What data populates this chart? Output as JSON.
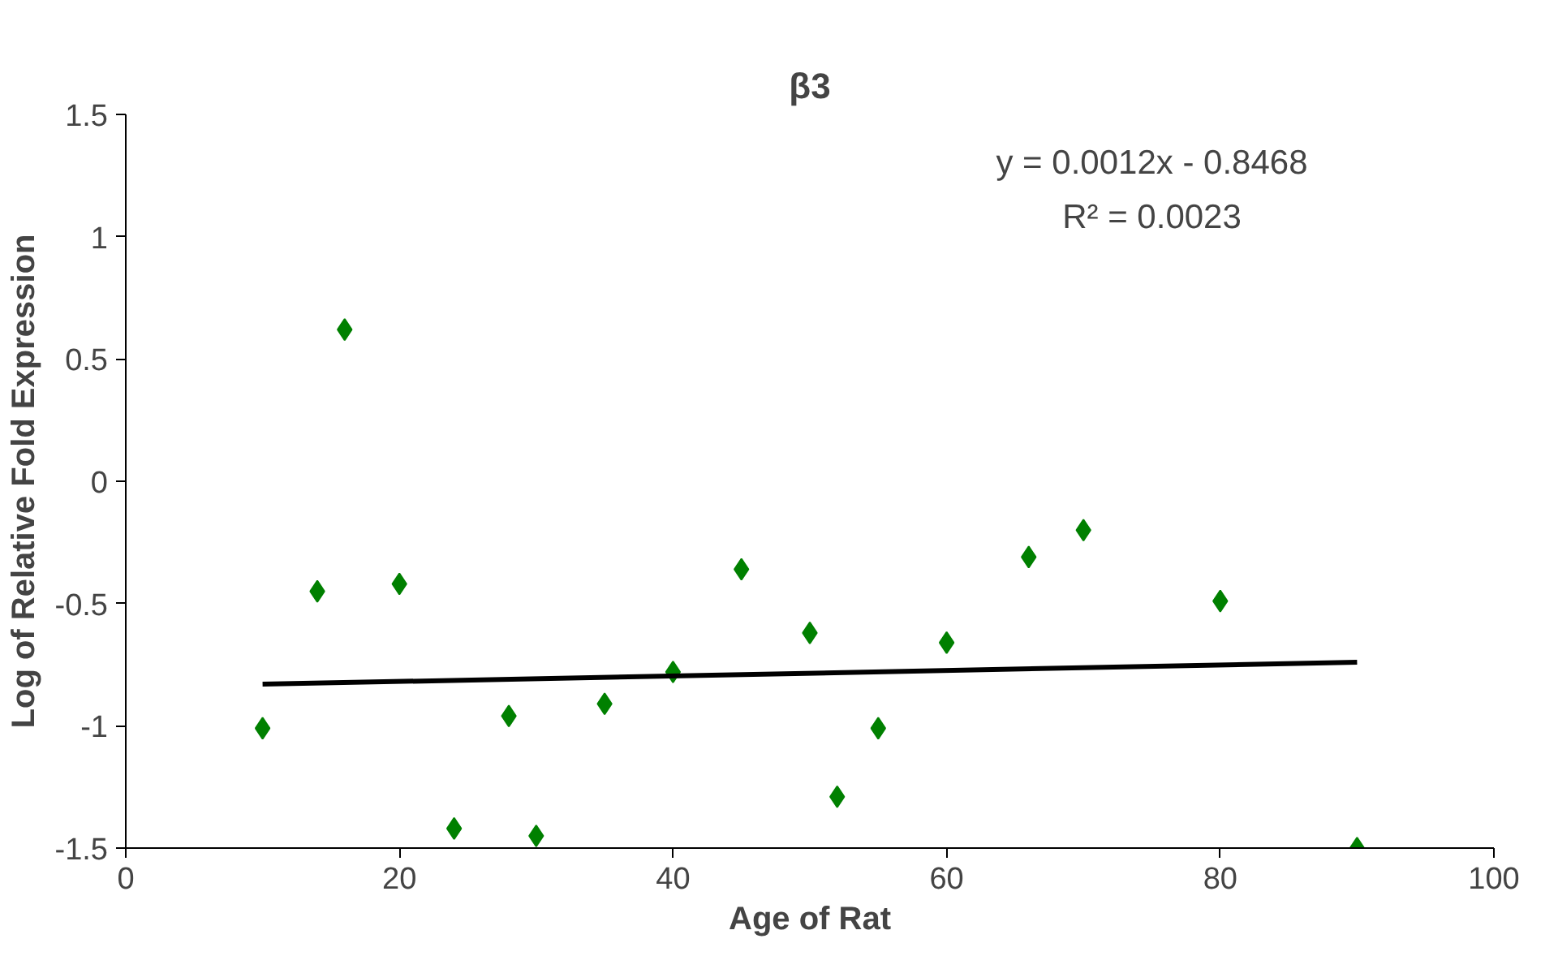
{
  "chart_data": {
    "type": "scatter",
    "title": "β3",
    "xlabel": "Age of Rat",
    "ylabel": "Log of Relative Fold Expression",
    "annotations": [
      "y = 0.0012x - 0.8468",
      "R² = 0.0023"
    ],
    "series": [
      {
        "color": "#008000",
        "marker": "diamond",
        "x": [
          10,
          14,
          16,
          20,
          24,
          28,
          30,
          35,
          40,
          45,
          50,
          52,
          55,
          60,
          66,
          70,
          80,
          90
        ],
        "values": [
          -1.01,
          -0.45,
          0.62,
          -0.42,
          -1.42,
          -0.96,
          -1.45,
          -0.91,
          -0.78,
          -0.36,
          -0.62,
          -1.29,
          -1.01,
          -0.66,
          -0.31,
          -0.2,
          -0.49,
          -1.5
        ]
      },
      {
        "type": "line",
        "color": "#000000",
        "line_style": "solid",
        "x": [
          10,
          90
        ],
        "values": [
          -0.83,
          -0.74
        ]
      }
    ],
    "xlim": [
      0,
      100
    ],
    "xticks": [
      0,
      20,
      40,
      60,
      80,
      100
    ],
    "ylim": [
      -1.5,
      1.5
    ],
    "yticks": [
      -1.5,
      -1,
      -0.5,
      0,
      0.5,
      1,
      1.5
    ],
    "grid": false
  }
}
